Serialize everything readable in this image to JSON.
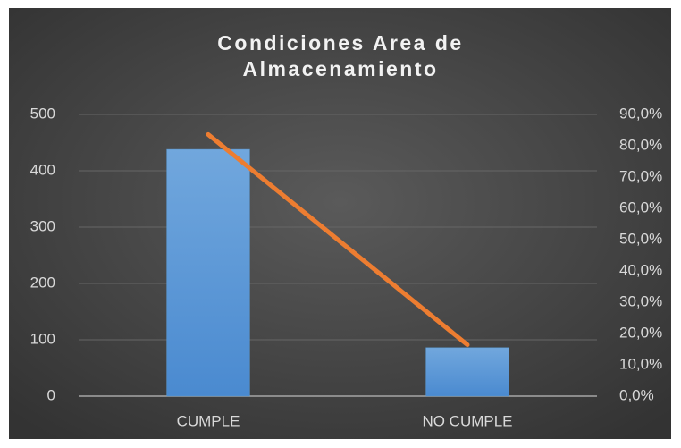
{
  "chart_data": {
    "type": "bar",
    "title": "Condiciones Area de Almacenamiento",
    "categories": [
      "CUMPLE",
      "NO CUMPLE"
    ],
    "series": [
      {
        "type": "bar",
        "color": "#5b9bd5",
        "values": [
          438,
          86
        ]
      },
      {
        "type": "line",
        "axis": "y2",
        "color": "#ed7d31",
        "values": [
          83.6,
          16.4
        ]
      }
    ],
    "ylim": [
      0,
      500
    ],
    "yticks": [
      0,
      100,
      200,
      300,
      400,
      500
    ],
    "y2lim": [
      0,
      90
    ],
    "y2ticks": [
      {
        "value": 0,
        "label": "0,0%"
      },
      {
        "value": 10,
        "label": "10,0%"
      },
      {
        "value": 20,
        "label": "20,0%"
      },
      {
        "value": 30,
        "label": "30,0%"
      },
      {
        "value": 40,
        "label": "40,0%"
      },
      {
        "value": 50,
        "label": "50,0%"
      },
      {
        "value": 60,
        "label": "60,0%"
      },
      {
        "value": 70,
        "label": "70,0%"
      },
      {
        "value": 80,
        "label": "80,0%"
      },
      {
        "value": 90,
        "label": "90,0%"
      }
    ],
    "grid": true
  }
}
